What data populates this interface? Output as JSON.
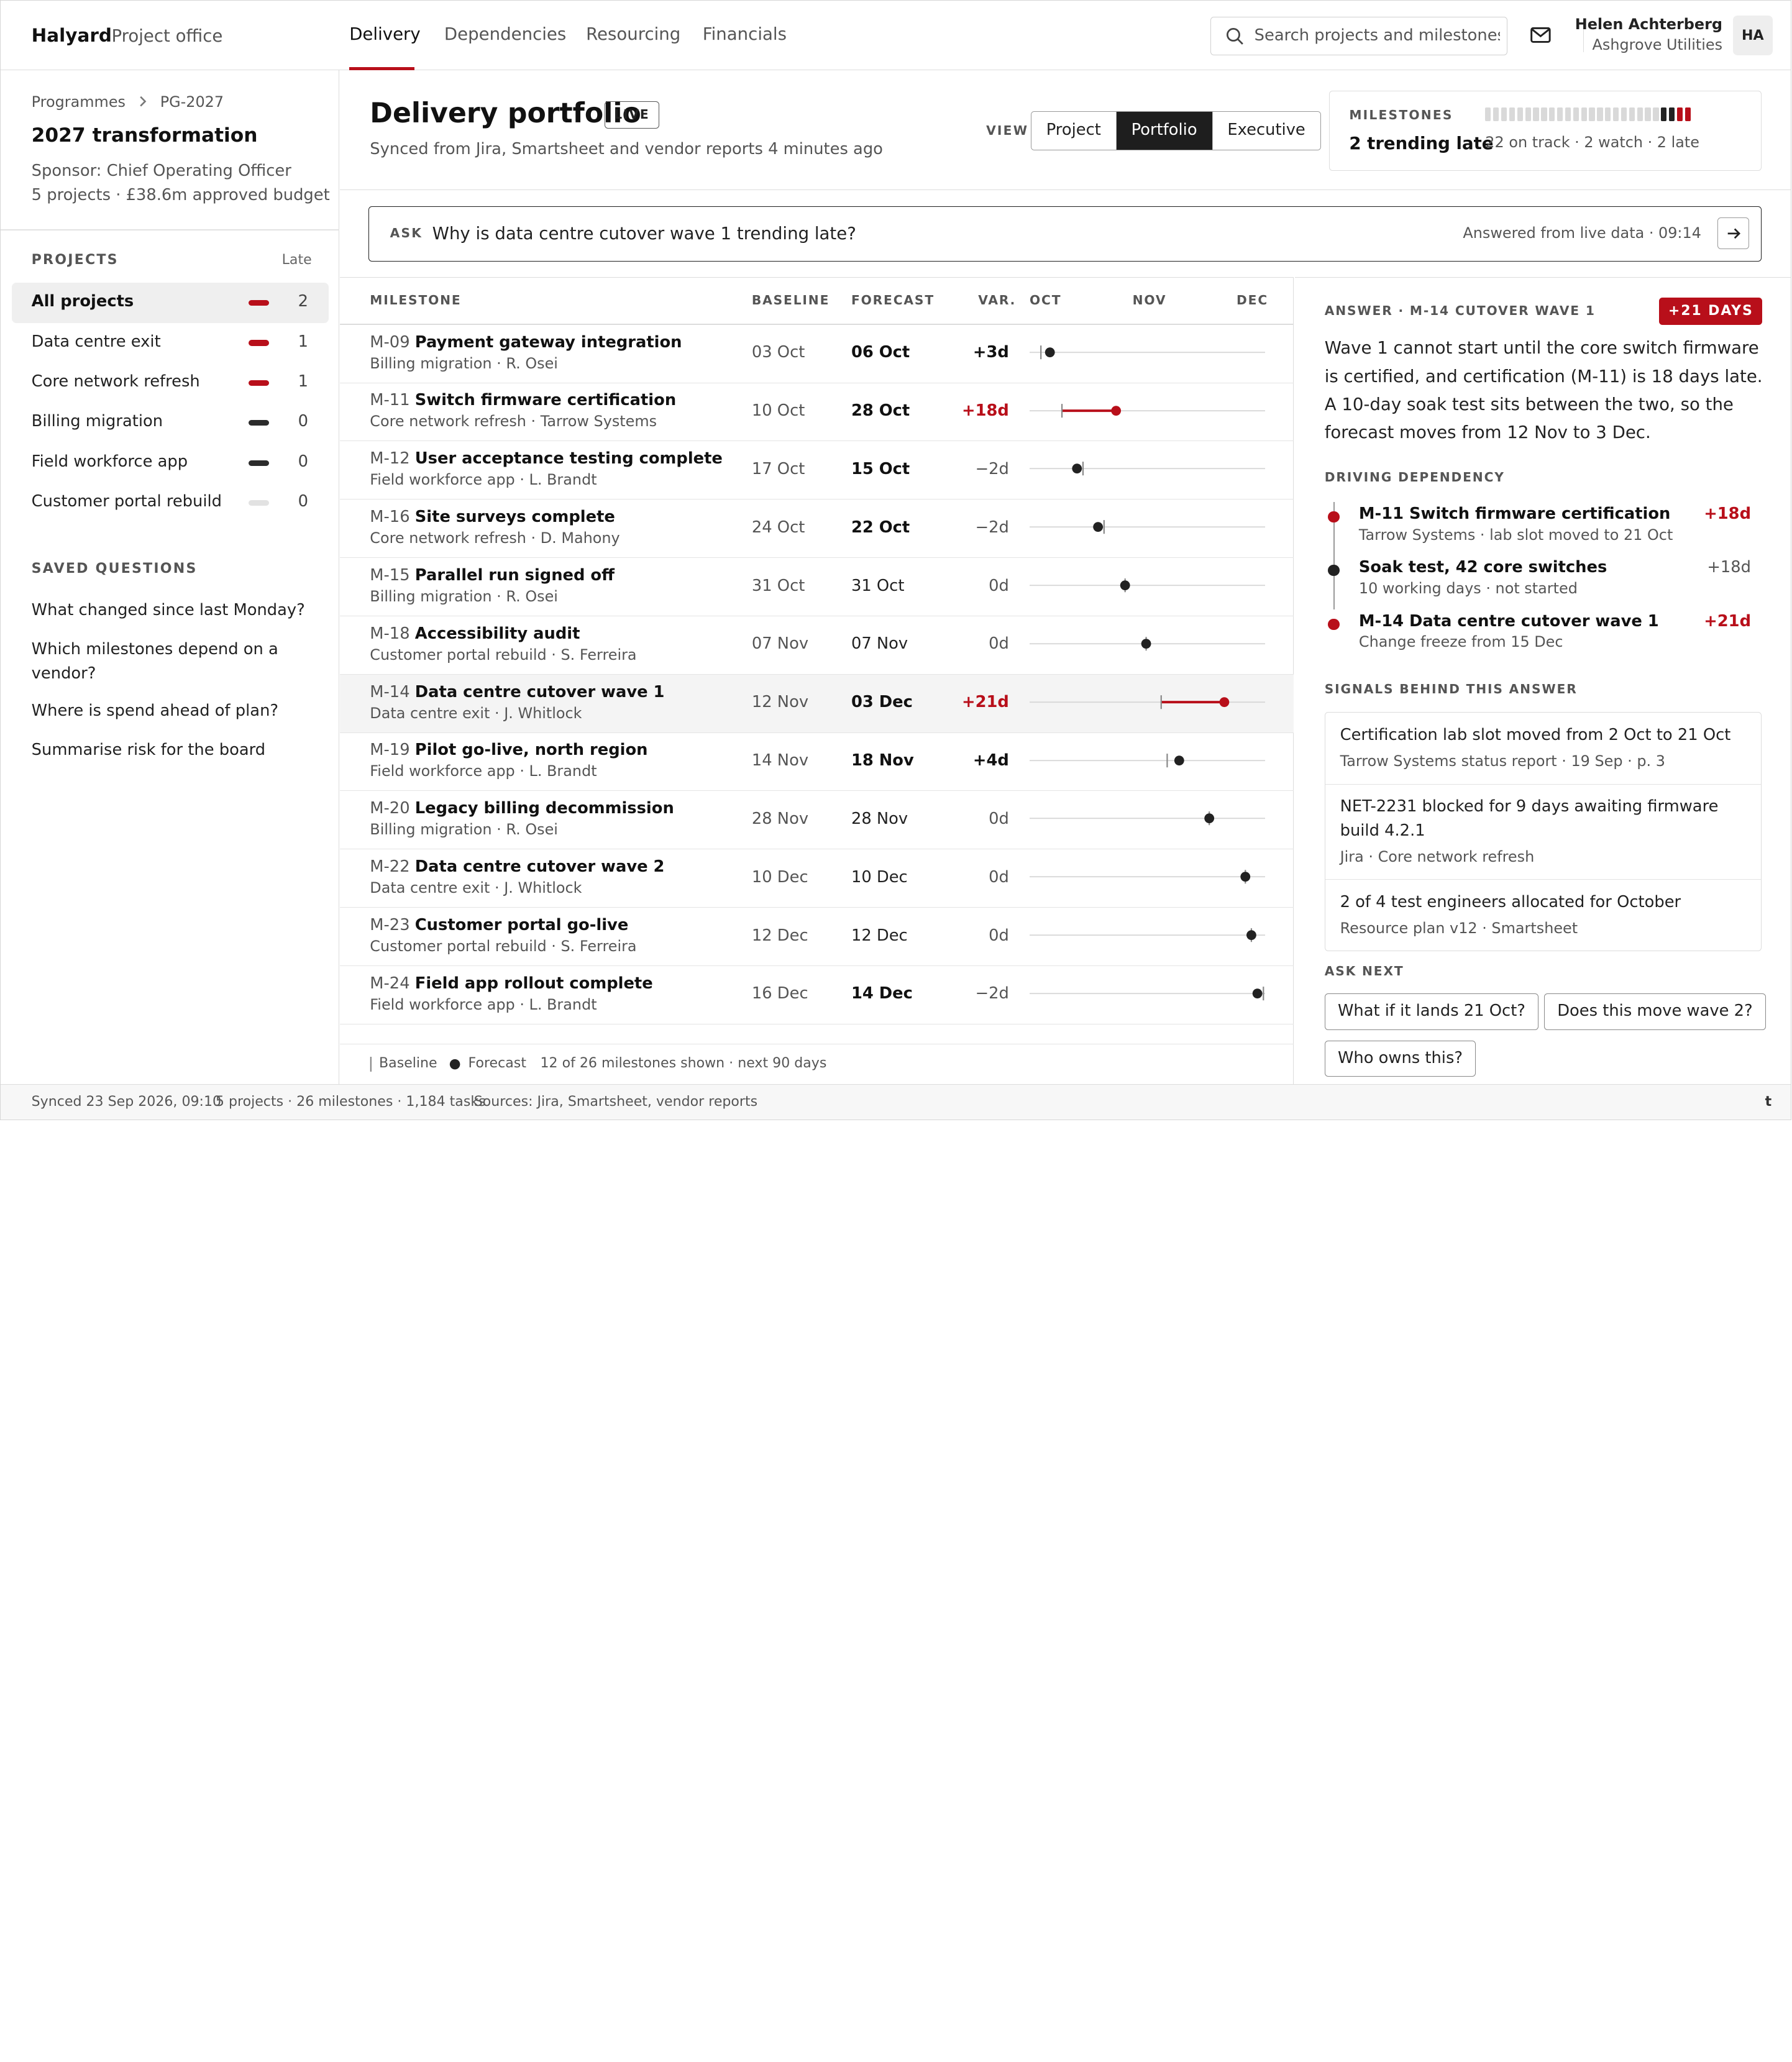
{
  "topbar": {
    "brand": "Halyard",
    "brand_sub": "Project office",
    "nav": [
      "Delivery",
      "Dependencies",
      "Resourcing",
      "Financials"
    ],
    "active_nav": "Delivery",
    "search_placeholder": "Search projects and milestones",
    "user_name": "Helen Achterberg",
    "user_org": "Ashgrove Utilities",
    "avatar_initials": "HA"
  },
  "sidebar": {
    "breadcrumb": [
      "Programmes",
      "PG-2027"
    ],
    "programme_title": "2027 transformation",
    "sponsor": "Sponsor: Chief Operating Officer",
    "budget": "5 projects · £38.6m approved budget",
    "projects_heading": "PROJECTS",
    "late_heading": "Late",
    "projects": [
      {
        "name": "All projects",
        "late": "2",
        "marker": "#b80f1a",
        "selected": true
      },
      {
        "name": "Data centre exit",
        "late": "1",
        "marker": "#b80f1a"
      },
      {
        "name": "Core network refresh",
        "late": "1",
        "marker": "#b80f1a"
      },
      {
        "name": "Billing migration",
        "late": "0",
        "marker": "#2b2b2b"
      },
      {
        "name": "Field workforce app",
        "late": "0",
        "marker": "#2b2b2b"
      },
      {
        "name": "Customer portal rebuild",
        "late": "0",
        "marker": "#e2e2e2"
      }
    ],
    "saved_heading": "SAVED QUESTIONS",
    "saved_questions": [
      "What changed since last Monday?",
      "Which milestones depend on a vendor?",
      "Where is spend ahead of plan?",
      "Summarise risk for the board"
    ]
  },
  "header": {
    "title": "Delivery portfolio",
    "live_badge": "LIVE",
    "synced": "Synced from Jira, Smartsheet and vendor reports 4 minutes ago",
    "view_label": "VIEW",
    "views": [
      "Project",
      "Portfolio",
      "Executive"
    ],
    "active_view": "Portfolio",
    "milestones_label": "MILESTONES",
    "milestones_value": "2 trending late",
    "milestones_summary": "22 on track · 2 watch · 2 late",
    "milestone_counts": {
      "on_track": 22,
      "watch": 2,
      "late": 2
    },
    "status_colors": {
      "on_track": "#d9d9d9",
      "watch": "#222222",
      "late": "#b80f1a"
    }
  },
  "ask": {
    "label": "ASK",
    "question": "Why is data centre cutover wave 1 trending late?",
    "answered": "Answered from live data · 09:14"
  },
  "table": {
    "headers": {
      "milestone": "MILESTONE",
      "baseline": "BASELINE",
      "forecast": "FORECAST",
      "variance": "VAR.",
      "oct": "OCT",
      "nov": "NOV",
      "dec": "DEC"
    },
    "rows": [
      {
        "id": "M-09",
        "name": "Payment gateway integration",
        "sub": "Billing migration · R. Osei",
        "baseline": "03 Oct",
        "forecast": "06 Oct",
        "var": "+3d",
        "b": 3,
        "f": 6
      },
      {
        "id": "M-11",
        "name": "Switch firmware certification",
        "sub": "Core network refresh · Tarrow Systems",
        "baseline": "10 Oct",
        "forecast": "28 Oct",
        "var": "+18d",
        "b": 10,
        "f": 28,
        "late": true
      },
      {
        "id": "M-12",
        "name": "User acceptance testing complete",
        "sub": "Field workforce app · L. Brandt",
        "baseline": "17 Oct",
        "forecast": "15 Oct",
        "var": "−2d",
        "b": 17,
        "f": 15
      },
      {
        "id": "M-16",
        "name": "Site surveys complete",
        "sub": "Core network refresh · D. Mahony",
        "baseline": "24 Oct",
        "forecast": "22 Oct",
        "var": "−2d",
        "b": 24,
        "f": 22
      },
      {
        "id": "M-15",
        "name": "Parallel run signed off",
        "sub": "Billing migration · R. Osei",
        "baseline": "31 Oct",
        "forecast": "31 Oct",
        "var": "0d",
        "b": 31,
        "f": 31
      },
      {
        "id": "M-18",
        "name": "Accessibility audit",
        "sub": "Customer portal rebuild · S. Ferreira",
        "baseline": "07 Nov",
        "forecast": "07 Nov",
        "var": "0d",
        "b": 38,
        "f": 38
      },
      {
        "id": "M-14",
        "name": "Data centre cutover wave 1",
        "sub": "Data centre exit · J. Whitlock",
        "baseline": "12 Nov",
        "forecast": "03 Dec",
        "var": "+21d",
        "b": 43,
        "f": 64,
        "late": true,
        "highlight": true
      },
      {
        "id": "M-19",
        "name": "Pilot go-live, north region",
        "sub": "Field workforce app · L. Brandt",
        "baseline": "14 Nov",
        "forecast": "18 Nov",
        "var": "+4d",
        "b": 45,
        "f": 49
      },
      {
        "id": "M-20",
        "name": "Legacy billing decommission",
        "sub": "Billing migration · R. Osei",
        "baseline": "28 Nov",
        "forecast": "28 Nov",
        "var": "0d",
        "b": 59,
        "f": 59
      },
      {
        "id": "M-22",
        "name": "Data centre cutover wave 2",
        "sub": "Data centre exit · J. Whitlock",
        "baseline": "10 Dec",
        "forecast": "10 Dec",
        "var": "0d",
        "b": 71,
        "f": 71
      },
      {
        "id": "M-23",
        "name": "Customer portal go-live",
        "sub": "Customer portal rebuild · S. Ferreira",
        "baseline": "12 Dec",
        "forecast": "12 Dec",
        "var": "0d",
        "b": 73,
        "f": 73
      },
      {
        "id": "M-24",
        "name": "Field app rollout complete",
        "sub": "Field workforce app · L. Brandt",
        "baseline": "16 Dec",
        "forecast": "14 Dec",
        "var": "−2d",
        "b": 77,
        "f": 75
      }
    ],
    "legend_baseline": "Baseline",
    "legend_forecast": "Forecast",
    "shown": "12 of 26 milestones shown · next 90 days"
  },
  "answer": {
    "heading": "ANSWER · M-14 CUTOVER WAVE 1",
    "badge": "+21 DAYS",
    "text": "Wave 1 cannot start until the core switch firmware is certified, and certification (M-11) is 18 days late. A 10-day soak test sits between the two, so the forecast moves from 12 Nov to 3 Dec.",
    "driving_heading": "DRIVING DEPENDENCY",
    "deps": [
      {
        "title": "M-11 Switch firmware certification",
        "sub": "Tarrow Systems · lab slot moved to 21 Oct",
        "var": "+18d",
        "color": "#b80f1a"
      },
      {
        "title": "Soak test, 42 core switches",
        "sub": "10 working days · not started",
        "var": "+18d",
        "color": "#222222"
      },
      {
        "title": "M-14 Data centre cutover wave 1",
        "sub": "Change freeze from 15 Dec",
        "var": "+21d",
        "color": "#b80f1a"
      }
    ],
    "signals_heading": "SIGNALS BEHIND THIS ANSWER",
    "signals": [
      {
        "text": "Certification lab slot moved from 2 Oct to 21 Oct",
        "source": "Tarrow Systems status report · 19 Sep · p. 3"
      },
      {
        "text": "NET-2231 blocked for 9 days awaiting firmware build 4.2.1",
        "source": "Jira · Core network refresh"
      },
      {
        "text": "2 of 4 test engineers allocated for October",
        "source": "Resource plan v12 · Smartsheet"
      }
    ],
    "ask_next_heading": "ASK NEXT",
    "ask_next": [
      "What if it lands 21 Oct?",
      "Does this move wave 2?",
      "Who owns this?"
    ]
  },
  "footer": {
    "synced": "Synced 23 Sep 2026, 09:10",
    "counts": "5 projects · 26 milestones · 1,184 tasks",
    "sources": "Sources: Jira, Smartsheet, vendor reports",
    "mark": "t"
  }
}
